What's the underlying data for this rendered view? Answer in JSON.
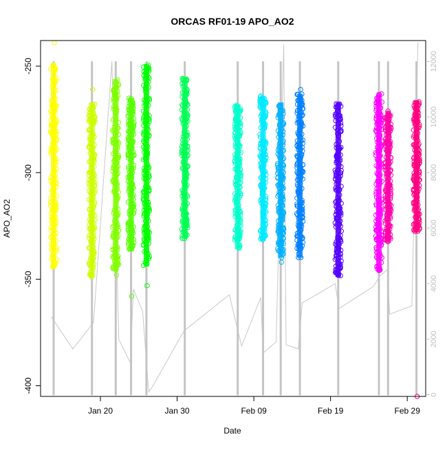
{
  "chart_data": {
    "type": "scatter",
    "title": "ORCAS RF01-19 APO_AO2",
    "xlabel": "Date",
    "ylabel": "APO_AO2",
    "ylim": [
      -405,
      -238
    ],
    "y2lim": [
      -60,
      12750
    ],
    "y2_color": "#bebebe",
    "grid": false,
    "x_ticks": [
      {
        "label": "Jan 20",
        "day": 20
      },
      {
        "label": "Jan 30",
        "day": 30
      },
      {
        "label": "Feb 09",
        "day": 40
      },
      {
        "label": "Feb 19",
        "day": 50
      },
      {
        "label": "Feb 29",
        "day": 60
      }
    ],
    "xlim_days": [
      12.2,
      62.4
    ],
    "y_ticks": [
      -250,
      -300,
      -350,
      -400
    ],
    "y2_ticks": [
      0,
      2000,
      4000,
      6000,
      8000,
      10000,
      12000
    ],
    "series": [
      {
        "day": 13.9,
        "ymin": -345,
        "ymax": -249,
        "outliers": [
          -239
        ],
        "color": "#ffff00"
      },
      {
        "day": 18.9,
        "ymin": -349,
        "ymax": -267,
        "outliers": [
          -261
        ],
        "color": "#ccff00"
      },
      {
        "day": 22.0,
        "ymin": -346,
        "ymax": -256,
        "outliers": [
          -348
        ],
        "color": "#80ff00"
      },
      {
        "day": 24.0,
        "ymin": -337,
        "ymax": -265,
        "outliers": [
          -358
        ],
        "color": "#55ff00"
      },
      {
        "day": 26.0,
        "ymin": -344,
        "ymax": -249,
        "outliers": [
          -353
        ],
        "color": "#00ff00"
      },
      {
        "day": 31.0,
        "ymin": -331,
        "ymax": -255,
        "outliers": [],
        "color": "#00ff55"
      },
      {
        "day": 37.9,
        "ymin": -336,
        "ymax": -268,
        "outliers": [],
        "color": "#00ffcc"
      },
      {
        "day": 41.2,
        "ymin": -332,
        "ymax": -264,
        "outliers": [],
        "color": "#00eaff"
      },
      {
        "day": 43.5,
        "ymin": -340,
        "ymax": -267,
        "outliers": [
          -342
        ],
        "color": "#00b0ff"
      },
      {
        "day": 46.0,
        "ymin": -340,
        "ymax": -263,
        "outliers": [
          -261
        ],
        "color": "#0080ff"
      },
      {
        "day": 51.0,
        "ymin": -349,
        "ymax": -267,
        "outliers": [],
        "color": "#5500ff"
      },
      {
        "day": 56.3,
        "ymin": -346,
        "ymax": -263,
        "outliers": [],
        "color": "#ff00ff"
      },
      {
        "day": 57.5,
        "ymin": -333,
        "ymax": -271,
        "outliers": [],
        "color": "#ff00aa"
      },
      {
        "day": 61.2,
        "ymin": -328,
        "ymax": -266,
        "outliers": [
          -405
        ],
        "color": "#ff0080"
      }
    ],
    "altitude_track": [
      {
        "day": 13.6,
        "alt": 2800
      },
      {
        "day": 16.4,
        "alt": 1650
      },
      {
        "day": 19.1,
        "alt": 2600
      },
      {
        "day": 21.5,
        "alt": 12000
      },
      {
        "day": 22.4,
        "alt": 2000
      },
      {
        "day": 23.9,
        "alt": 1150
      },
      {
        "day": 24.3,
        "alt": 3800
      },
      {
        "day": 25.5,
        "alt": 3000
      },
      {
        "day": 26.3,
        "alt": 100
      },
      {
        "day": 26.8,
        "alt": 300
      },
      {
        "day": 30.9,
        "alt": 2300
      },
      {
        "day": 36.8,
        "alt": 3600
      },
      {
        "day": 38.4,
        "alt": 1750
      },
      {
        "day": 40.9,
        "alt": 3500
      },
      {
        "day": 41.2,
        "alt": 1500
      },
      {
        "day": 42.9,
        "alt": 1900
      },
      {
        "day": 43.9,
        "alt": 12600
      },
      {
        "day": 44.2,
        "alt": 1800
      },
      {
        "day": 45.8,
        "alt": 1650
      },
      {
        "day": 46.3,
        "alt": 3300
      },
      {
        "day": 50.6,
        "alt": 4000
      },
      {
        "day": 51.1,
        "alt": 3100
      },
      {
        "day": 55.6,
        "alt": 3900
      },
      {
        "day": 56.5,
        "alt": 4300
      },
      {
        "day": 57.4,
        "alt": 4500
      },
      {
        "day": 57.7,
        "alt": 2900
      },
      {
        "day": 60.6,
        "alt": 3200
      },
      {
        "day": 61.4,
        "alt": 12700
      }
    ]
  }
}
